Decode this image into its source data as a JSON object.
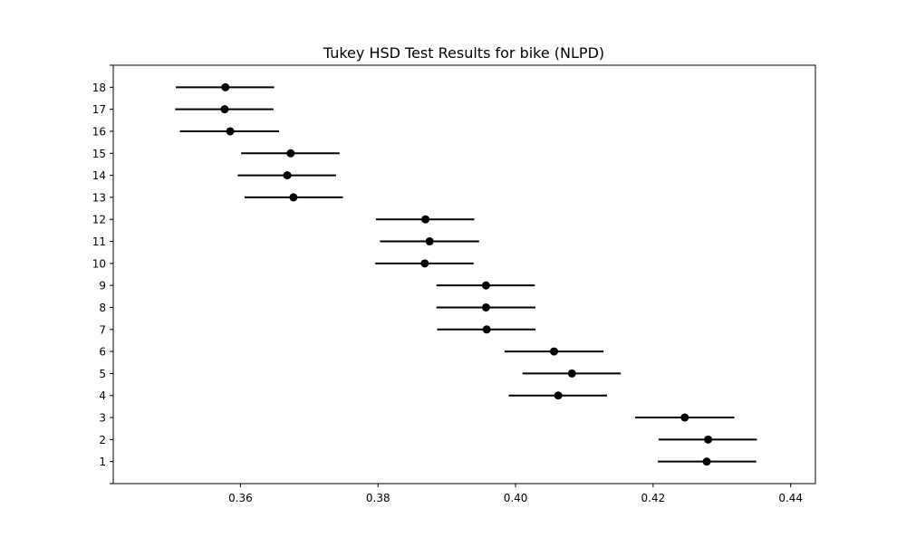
{
  "chart_data": {
    "type": "scatter",
    "title": "Tukey HSD Test Results for bike (NLPD)",
    "xlabel": "",
    "ylabel": "",
    "xlim": [
      0.3415,
      0.4436
    ],
    "ylim": [
      0,
      19
    ],
    "x_ticks": [
      "0.36",
      "0.38",
      "0.40",
      "0.42",
      "0.44"
    ],
    "x_tick_values": [
      0.36,
      0.38,
      0.4,
      0.42,
      0.44
    ],
    "grid": false,
    "colors": {
      "marker": "#000000",
      "interval": "#000000",
      "axes": "#000000"
    },
    "groups": [
      {
        "label": "1",
        "mean": 0.4278,
        "lower": 0.4207,
        "upper": 0.435
      },
      {
        "label": "2",
        "mean": 0.428,
        "lower": 0.4208,
        "upper": 0.4351
      },
      {
        "label": "3",
        "mean": 0.4246,
        "lower": 0.4174,
        "upper": 0.4318
      },
      {
        "label": "4",
        "mean": 0.4062,
        "lower": 0.399,
        "upper": 0.4133
      },
      {
        "label": "5",
        "mean": 0.4082,
        "lower": 0.401,
        "upper": 0.4153
      },
      {
        "label": "6",
        "mean": 0.4056,
        "lower": 0.3984,
        "upper": 0.4128
      },
      {
        "label": "7",
        "mean": 0.3958,
        "lower": 0.3886,
        "upper": 0.4029
      },
      {
        "label": "8",
        "mean": 0.3957,
        "lower": 0.3885,
        "upper": 0.4029
      },
      {
        "label": "9",
        "mean": 0.3957,
        "lower": 0.3885,
        "upper": 0.4028
      },
      {
        "label": "10",
        "mean": 0.3868,
        "lower": 0.3796,
        "upper": 0.3939
      },
      {
        "label": "11",
        "mean": 0.3875,
        "lower": 0.3803,
        "upper": 0.3947
      },
      {
        "label": "12",
        "mean": 0.3869,
        "lower": 0.3797,
        "upper": 0.394
      },
      {
        "label": "13",
        "mean": 0.3677,
        "lower": 0.3606,
        "upper": 0.3749
      },
      {
        "label": "14",
        "mean": 0.3668,
        "lower": 0.3596,
        "upper": 0.3739
      },
      {
        "label": "15",
        "mean": 0.3673,
        "lower": 0.3601,
        "upper": 0.3744
      },
      {
        "label": "16",
        "mean": 0.3585,
        "lower": 0.3512,
        "upper": 0.3656
      },
      {
        "label": "17",
        "mean": 0.3577,
        "lower": 0.3505,
        "upper": 0.3648
      },
      {
        "label": "18",
        "mean": 0.3578,
        "lower": 0.3506,
        "upper": 0.3649
      }
    ]
  }
}
